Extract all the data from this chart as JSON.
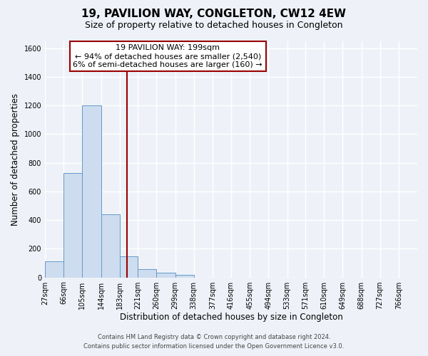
{
  "title": "19, PAVILION WAY, CONGLETON, CW12 4EW",
  "subtitle": "Size of property relative to detached houses in Congleton",
  "xlabel": "Distribution of detached houses by size in Congleton",
  "ylabel": "Number of detached properties",
  "footer_line1": "Contains HM Land Registry data © Crown copyright and database right 2024.",
  "footer_line2": "Contains public sector information licensed under the Open Government Licence v3.0.",
  "bin_edges": [
    27,
    66,
    105,
    144,
    183,
    221,
    260,
    299,
    338,
    377,
    416,
    455,
    494,
    533,
    571,
    610,
    649,
    688,
    727,
    766,
    805
  ],
  "bin_counts": [
    110,
    730,
    1200,
    440,
    145,
    60,
    35,
    20,
    0,
    0,
    0,
    0,
    0,
    0,
    0,
    0,
    0,
    0,
    0,
    0
  ],
  "bar_facecolor": "#cddcee",
  "bar_edgecolor": "#6699cc",
  "property_value": 199,
  "vline_color": "#990000",
  "annotation_box_text_line1": "19 PAVILION WAY: 199sqm",
  "annotation_box_text_line2": "← 94% of detached houses are smaller (2,540)",
  "annotation_box_text_line3": "6% of semi-detached houses are larger (160) →",
  "ylim": [
    0,
    1650
  ],
  "yticks": [
    0,
    200,
    400,
    600,
    800,
    1000,
    1200,
    1400,
    1600
  ],
  "background_color": "#eef2f8",
  "grid_color": "#ffffff",
  "title_fontsize": 11,
  "subtitle_fontsize": 9,
  "axis_label_fontsize": 8.5,
  "tick_fontsize": 7,
  "annotation_fontsize": 8,
  "footer_fontsize": 6
}
